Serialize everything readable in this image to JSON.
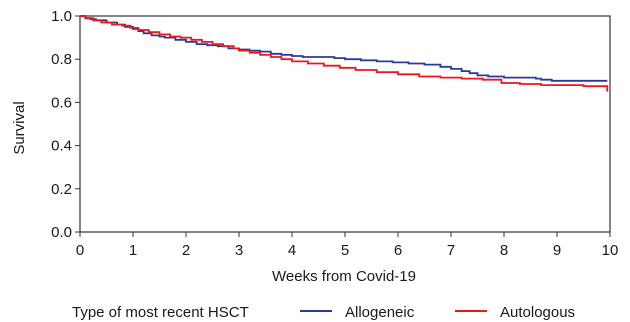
{
  "chart_data": {
    "type": "line",
    "step": true,
    "xlabel": "Weeks from Covid-19",
    "ylabel": "Survival",
    "xlim": [
      0,
      10
    ],
    "ylim": [
      0,
      1
    ],
    "xticks": [
      0,
      1,
      2,
      3,
      4,
      5,
      6,
      7,
      8,
      9,
      10
    ],
    "yticks": [
      0.0,
      0.2,
      0.4,
      0.6,
      0.8,
      1.0
    ],
    "ytick_labels": [
      "0.0",
      "0.2",
      "0.4",
      "0.6",
      "0.8",
      "1.0"
    ],
    "grid": false,
    "legend": {
      "title": "Type of most recent HSCT",
      "placement": "bottom"
    },
    "series": [
      {
        "name": "Allogeneic",
        "color": "#2b3a9a",
        "x": [
          0,
          0.1,
          0.2,
          0.3,
          0.5,
          0.7,
          0.85,
          1.0,
          1.1,
          1.2,
          1.35,
          1.5,
          1.6,
          1.8,
          2.0,
          2.2,
          2.4,
          2.6,
          2.8,
          3.0,
          3.2,
          3.4,
          3.6,
          3.8,
          4.0,
          4.2,
          4.5,
          4.8,
          5.0,
          5.3,
          5.6,
          5.9,
          6.2,
          6.5,
          6.8,
          7.0,
          7.2,
          7.35,
          7.5,
          7.7,
          8.0,
          8.3,
          8.6,
          8.7,
          8.9,
          9.2,
          9.5,
          9.95
        ],
        "y": [
          1.0,
          0.99,
          0.985,
          0.98,
          0.97,
          0.96,
          0.95,
          0.94,
          0.93,
          0.92,
          0.91,
          0.905,
          0.9,
          0.89,
          0.88,
          0.87,
          0.865,
          0.86,
          0.85,
          0.845,
          0.84,
          0.835,
          0.825,
          0.82,
          0.815,
          0.81,
          0.81,
          0.805,
          0.8,
          0.795,
          0.79,
          0.785,
          0.78,
          0.775,
          0.765,
          0.755,
          0.745,
          0.735,
          0.725,
          0.72,
          0.715,
          0.715,
          0.71,
          0.705,
          0.7,
          0.7,
          0.7,
          0.7
        ]
      },
      {
        "name": "Autologous",
        "color": "#e8181e",
        "x": [
          0,
          0.1,
          0.25,
          0.4,
          0.6,
          0.8,
          0.95,
          1.1,
          1.3,
          1.5,
          1.7,
          1.9,
          2.1,
          2.3,
          2.5,
          2.7,
          2.9,
          3.0,
          3.2,
          3.4,
          3.6,
          3.8,
          4.0,
          4.3,
          4.6,
          4.9,
          5.2,
          5.6,
          6.0,
          6.4,
          6.8,
          7.2,
          7.6,
          7.95,
          8.3,
          8.7,
          9.1,
          9.5,
          9.9,
          9.95
        ],
        "y": [
          1.0,
          0.99,
          0.98,
          0.97,
          0.96,
          0.955,
          0.945,
          0.935,
          0.925,
          0.915,
          0.905,
          0.9,
          0.89,
          0.88,
          0.87,
          0.86,
          0.85,
          0.84,
          0.83,
          0.82,
          0.81,
          0.8,
          0.79,
          0.78,
          0.77,
          0.76,
          0.75,
          0.74,
          0.73,
          0.72,
          0.715,
          0.71,
          0.705,
          0.69,
          0.685,
          0.68,
          0.68,
          0.675,
          0.675,
          0.65
        ]
      }
    ]
  }
}
